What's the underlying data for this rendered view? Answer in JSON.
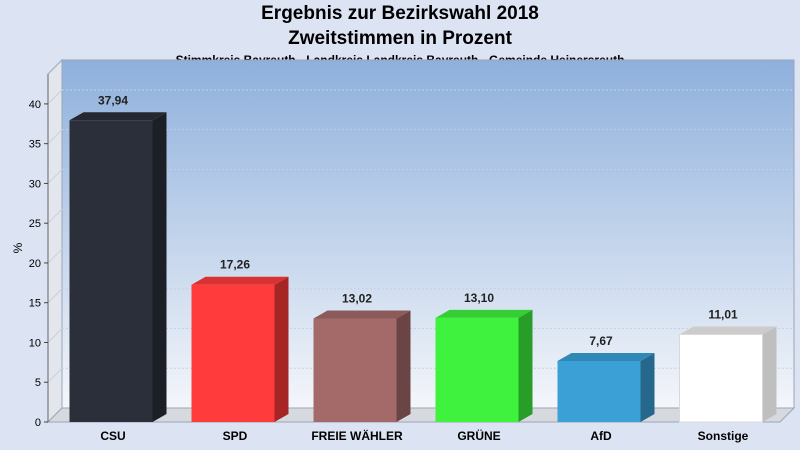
{
  "chart_data": {
    "type": "bar",
    "title": "Ergebnis zur Bezirkswahl 2018",
    "subtitle": "Zweitstimmen in Prozent",
    "caption": "Stimmkreis Bayreuth - Landkreis Landkreis Bayreuth - Gemeinde Heinersreuth",
    "ylabel": "%",
    "ylim": [
      0,
      42
    ],
    "yticks": [
      0,
      5,
      10,
      15,
      20,
      25,
      30,
      35,
      40
    ],
    "grid": true,
    "categories": [
      "CSU",
      "SPD",
      "FREIE WÄHLER",
      "GRÜNE",
      "AfD",
      "Sonstige"
    ],
    "values": [
      37.94,
      17.26,
      13.02,
      13.1,
      7.67,
      11.01
    ],
    "value_labels": [
      "37,94",
      "17,26",
      "13,02",
      "13,10",
      "7,67",
      "11,01"
    ],
    "colors": [
      "#2b2f3a",
      "#ff3b3b",
      "#a46a6a",
      "#3ef23e",
      "#3aa0d6",
      "#ffffff"
    ]
  }
}
